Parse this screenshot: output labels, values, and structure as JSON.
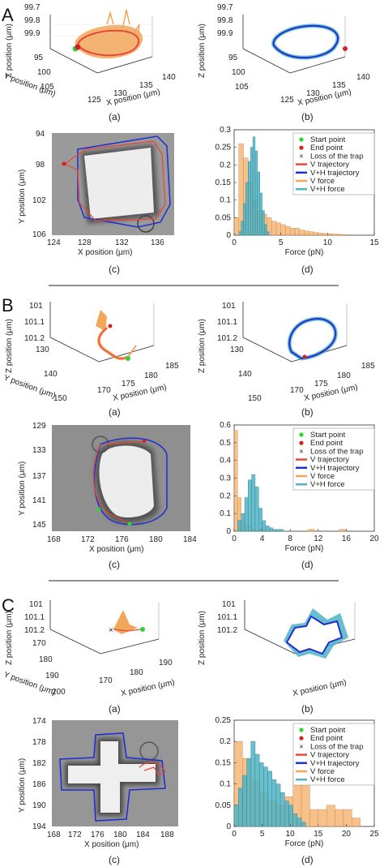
{
  "panels": [
    {
      "letter": "A",
      "sub_labels": [
        "(a)",
        "(b)",
        "(c)",
        "(d)"
      ],
      "plot3d": {
        "zlabel": "Z position (μm)",
        "ylabel": "Y position (μm)",
        "xlabel": "X position (μm)",
        "z_ticks": [
          "99.7",
          "99.8",
          "99.9"
        ],
        "y_ticks": [
          "95",
          "100",
          "105"
        ],
        "x_ticks": [
          "125",
          "130",
          "135",
          "140"
        ]
      },
      "image": {
        "ylabel": "Y position (μm)",
        "xlabel": "X position (μm)",
        "y_ticks": [
          "94",
          "98",
          "102",
          "106"
        ],
        "x_ticks": [
          "124",
          "128",
          "132",
          "136"
        ]
      },
      "hist": {
        "xlabel": "Force (pN)",
        "y_ticks": [
          "0",
          "0.05",
          "0.1",
          "0.15",
          "0.2",
          "0.25",
          "0.3"
        ],
        "x_ticks": [
          "0",
          "5",
          "10",
          "15"
        ]
      }
    },
    {
      "letter": "B",
      "sub_labels": [
        "(a)",
        "(b)",
        "(c)",
        "(d)"
      ],
      "plot3d": {
        "zlabel": "Z position (μm)",
        "ylabel": "Y position (μm)",
        "xlabel": "X position (μm)",
        "z_ticks": [
          "101",
          "101.1",
          "101.2"
        ],
        "y_ticks": [
          "130",
          "140",
          "150"
        ],
        "x_ticks": [
          "170",
          "175",
          "180",
          "185"
        ]
      },
      "image": {
        "ylabel": "Y position (μm)",
        "xlabel": "X position (μm)",
        "y_ticks": [
          "129",
          "133",
          "137",
          "141",
          "145"
        ],
        "x_ticks": [
          "168",
          "172",
          "176",
          "180",
          "184"
        ]
      },
      "hist": {
        "xlabel": "Force (pN)",
        "y_ticks": [
          "0",
          "0.1",
          "0.2",
          "0.3",
          "0.4",
          "0.5",
          "0.6"
        ],
        "x_ticks": [
          "0",
          "4",
          "8",
          "12",
          "16",
          "20"
        ]
      }
    },
    {
      "letter": "C",
      "sub_labels": [
        "(a)",
        "(b)",
        "(c)",
        "(d)"
      ],
      "plot3d": {
        "zlabel": "Z position (μm)",
        "ylabel": "Y position (μm)",
        "xlabel": "X position (μm)",
        "z_ticks": [
          "101",
          "101.1",
          "101.2"
        ],
        "y_ticks": [
          "170",
          "180",
          "190",
          "200"
        ],
        "x_ticks": [
          "170",
          "180",
          "190"
        ]
      },
      "image": {
        "ylabel": "Y position (μm)",
        "xlabel": "X position (μm)",
        "y_ticks": [
          "174",
          "178",
          "182",
          "186",
          "190",
          "194"
        ],
        "x_ticks": [
          "168",
          "172",
          "176",
          "180",
          "184",
          "188"
        ]
      },
      "hist": {
        "xlabel": "Force (pN)",
        "y_ticks": [
          "0",
          "0.05",
          "0.1",
          "0.15",
          "0.2",
          "0.25"
        ],
        "x_ticks": [
          "0",
          "5",
          "10",
          "15",
          "20",
          "25"
        ]
      }
    }
  ],
  "legend": [
    "Start point",
    "End point",
    "Loss of the trap",
    "V trajectory",
    "V+H trajectory",
    "V force",
    "V+H force"
  ],
  "colors": {
    "v_traj": "#e8473a",
    "vh_traj": "#1f2fd0",
    "v_force": "#f2a65a",
    "vh_force": "#4fb3c4",
    "start": "#36d13a",
    "end": "#d42020",
    "loss": "#d42020"
  },
  "chart_data": [
    {
      "type": "bar",
      "title": "",
      "xlabel": "Force (pN)",
      "ylabel": "",
      "xlim": [
        0,
        15
      ],
      "ylim": [
        0,
        0.3
      ],
      "series": [
        {
          "name": "V force",
          "bin_edges_start": 0,
          "bin_width": 0.5,
          "values": [
            0.05,
            0.26,
            0.22,
            0.15,
            0.1,
            0.07,
            0.06,
            0.05,
            0.04,
            0.035,
            0.03,
            0.025,
            0.02,
            0.02,
            0.015,
            0.012,
            0.01,
            0.008,
            0.006,
            0.005,
            0.004,
            0.003,
            0.003,
            0.002
          ]
        },
        {
          "name": "V+H force",
          "bin_edges_start": 0.5,
          "bin_width": 0.25,
          "values": [
            0.01,
            0.04,
            0.09,
            0.15,
            0.21,
            0.25,
            0.28,
            0.24,
            0.18,
            0.12,
            0.07,
            0.03,
            0.01
          ]
        }
      ]
    },
    {
      "type": "bar",
      "title": "",
      "xlabel": "Force (pN)",
      "ylabel": "",
      "xlim": [
        0,
        20
      ],
      "ylim": [
        0,
        0.6
      ],
      "series": [
        {
          "name": "V force",
          "bin_edges_start": 0,
          "bin_width": 0.5,
          "values": [
            0.57,
            0.19,
            0.06,
            0.04,
            0.03,
            0.01,
            0.01,
            0.01,
            0,
            0,
            0,
            0,
            0,
            0,
            0,
            0,
            0,
            0,
            0,
            0,
            0,
            0.01,
            0.01,
            0,
            0,
            0,
            0,
            0,
            0,
            0,
            0.01,
            0.01
          ]
        },
        {
          "name": "V+H force",
          "bin_edges_start": 0.5,
          "bin_width": 0.5,
          "values": [
            0.06,
            0.1,
            0.19,
            0.29,
            0.32,
            0.25,
            0.13,
            0.06,
            0.03,
            0.02,
            0.01,
            0.01,
            0.01
          ]
        }
      ]
    },
    {
      "type": "bar",
      "title": "",
      "xlabel": "Force (pN)",
      "ylabel": "",
      "xlim": [
        0,
        25
      ],
      "ylim": [
        0,
        0.25
      ],
      "series": [
        {
          "name": "V force",
          "bin_edges_start": 0,
          "bin_width": 1.5,
          "values": [
            0.2,
            0.16,
            0.11,
            0.08,
            0.06,
            0.05,
            0.07,
            0.13,
            0.1,
            0.04,
            0.04,
            0.05,
            0.04,
            0.04,
            0.02,
            0
          ]
        },
        {
          "name": "V+H force",
          "bin_edges_start": 0,
          "bin_width": 0.75,
          "values": [
            0.05,
            0.09,
            0.12,
            0.16,
            0.2,
            0.17,
            0.15,
            0.14,
            0.13,
            0.11,
            0.1,
            0.08,
            0.06,
            0.05,
            0.03,
            0.02,
            0.01
          ]
        }
      ]
    }
  ]
}
